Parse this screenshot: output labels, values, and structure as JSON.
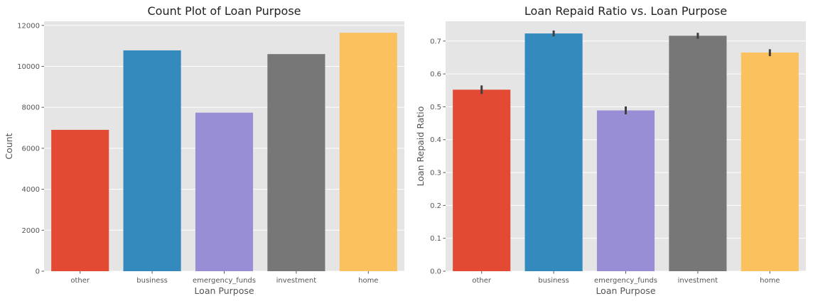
{
  "chart_data": [
    {
      "type": "bar",
      "title": "Count Plot of Loan Purpose",
      "xlabel": "Loan Purpose",
      "ylabel": "Count",
      "categories": [
        "other",
        "business",
        "emergency_funds",
        "investment",
        "home"
      ],
      "values": [
        6900,
        10780,
        7740,
        10600,
        11640
      ],
      "ylim": [
        0,
        12200
      ],
      "yticks": [
        0,
        2000,
        4000,
        6000,
        8000,
        10000,
        12000
      ],
      "ytick_labels": [
        "0",
        "2000",
        "4000",
        "6000",
        "8000",
        "10000",
        "12000"
      ],
      "grid": true,
      "colors": [
        "#E24A33",
        "#348ABD",
        "#988ED5",
        "#777777",
        "#FBC15E"
      ]
    },
    {
      "type": "bar",
      "title": "Loan Repaid Ratio vs. Loan Purpose",
      "xlabel": "Loan Purpose",
      "ylabel": "Loan Repaid Ratio",
      "categories": [
        "other",
        "business",
        "emergency_funds",
        "investment",
        "home"
      ],
      "values": [
        0.552,
        0.723,
        0.489,
        0.716,
        0.665
      ],
      "errors": [
        [
          0.539,
          0.565
        ],
        [
          0.714,
          0.732
        ],
        [
          0.477,
          0.501
        ],
        [
          0.707,
          0.725
        ],
        [
          0.654,
          0.675
        ]
      ],
      "ylim": [
        0,
        0.76
      ],
      "yticks": [
        0,
        0.1,
        0.2,
        0.3,
        0.4,
        0.5,
        0.6,
        0.7
      ],
      "ytick_labels": [
        "0.0",
        "0.1",
        "0.2",
        "0.3",
        "0.4",
        "0.5",
        "0.6",
        "0.7"
      ],
      "grid": true,
      "colors": [
        "#E24A33",
        "#348ABD",
        "#988ED5",
        "#777777",
        "#FBC15E"
      ]
    }
  ]
}
